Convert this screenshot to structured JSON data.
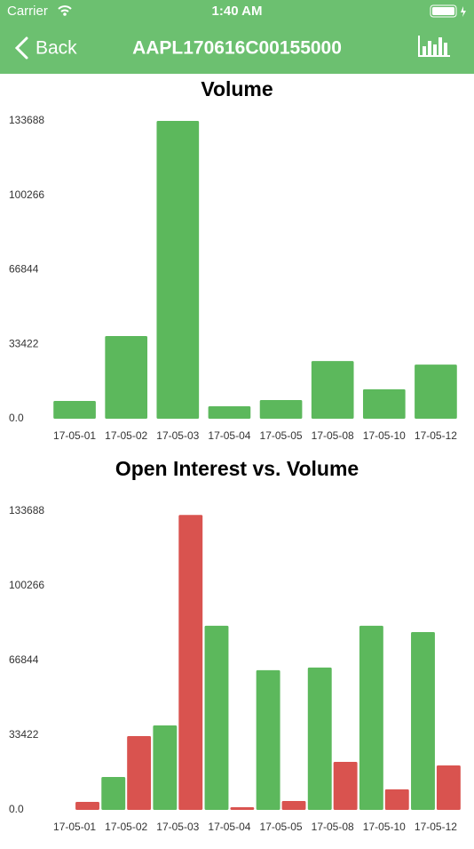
{
  "status_bar": {
    "carrier": "Carrier",
    "time": "1:40 AM"
  },
  "nav_bar": {
    "back": "Back",
    "title": "AAPL170616C00155000"
  },
  "chart_data": [
    {
      "type": "bar",
      "title": "Volume",
      "categories": [
        "17-05-01",
        "17-05-02",
        "17-05-03",
        "17-05-04",
        "17-05-05",
        "17-05-08",
        "17-05-10",
        "17-05-12"
      ],
      "series": [
        {
          "color": "#5cb85c",
          "values": [
            8000,
            37100,
            133688,
            5600,
            8400,
            25900,
            13200,
            24300
          ]
        }
      ],
      "ylim": [
        0,
        133688
      ],
      "yticks": [
        {
          "value": 0,
          "label": "0.0"
        },
        33422,
        66844,
        100266,
        133688
      ]
    },
    {
      "type": "bar",
      "title": "Open Interest vs. Volume",
      "categories": [
        "17-05-01",
        "17-05-02",
        "17-05-03",
        "17-05-04",
        "17-05-05",
        "17-05-08",
        "17-05-10",
        "17-05-12"
      ],
      "series": [
        {
          "color": "#5cb85c",
          "values": [
            0,
            14700,
            37800,
            82400,
            62500,
            63700,
            82400,
            79600
          ]
        },
        {
          "color": "#d9534f",
          "values": [
            3600,
            33000,
            132000,
            1200,
            4000,
            21500,
            9200,
            19900
          ]
        }
      ],
      "ylim": [
        0,
        133688
      ],
      "yticks": [
        {
          "value": 0,
          "label": "0.0"
        },
        33422,
        66844,
        100266,
        133688
      ]
    }
  ]
}
